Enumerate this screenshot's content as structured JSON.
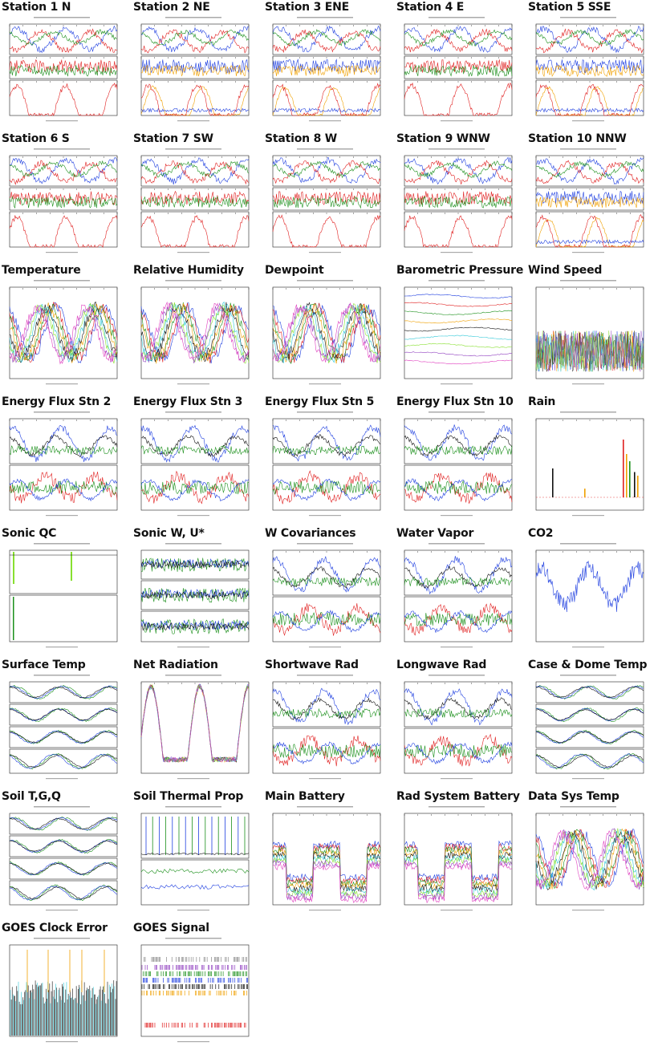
{
  "colors": {
    "blue": "#1f3fe0",
    "red": "#e01f1f",
    "green": "#1a8f1a",
    "orange": "#f0a000",
    "black": "#111111",
    "cyan": "#30c8d8",
    "lime": "#88e030",
    "purple": "#9040c0",
    "magenta": "#e040c0",
    "gray": "#888888"
  },
  "plots": [
    {
      "title": "Station 1 N",
      "kind": "station"
    },
    {
      "title": "Station 2 NE",
      "kind": "station_flux"
    },
    {
      "title": "Station 3 ENE",
      "kind": "station_flux"
    },
    {
      "title": "Station 4 E",
      "kind": "station"
    },
    {
      "title": "Station 5 SSE",
      "kind": "station_flux"
    },
    {
      "title": "Station 6 S",
      "kind": "station"
    },
    {
      "title": "Station 7 SW",
      "kind": "station"
    },
    {
      "title": "Station 8 W",
      "kind": "station"
    },
    {
      "title": "Station 9 WNW",
      "kind": "station"
    },
    {
      "title": "Station 10 NNW",
      "kind": "station_flux"
    },
    {
      "title": "Temperature",
      "kind": "multi"
    },
    {
      "title": "Relative Humidity",
      "kind": "multi"
    },
    {
      "title": "Dewpoint",
      "kind": "multi"
    },
    {
      "title": "Barometric Pressure",
      "kind": "flatlines"
    },
    {
      "title": "Wind Speed",
      "kind": "noisy"
    },
    {
      "title": "Energy Flux Stn 2",
      "kind": "flux2"
    },
    {
      "title": "Energy Flux Stn 3",
      "kind": "flux2"
    },
    {
      "title": "Energy Flux Stn 5",
      "kind": "flux2"
    },
    {
      "title": "Energy Flux Stn 10",
      "kind": "flux2"
    },
    {
      "title": "Rain",
      "kind": "rain"
    },
    {
      "title": "Sonic QC",
      "kind": "sonicqc"
    },
    {
      "title": "Sonic W, U*",
      "kind": "panels3"
    },
    {
      "title": "W Covariances",
      "kind": "panels2"
    },
    {
      "title": "Water Vapor",
      "kind": "panels2"
    },
    {
      "title": "CO2",
      "kind": "single"
    },
    {
      "title": "Surface Temp",
      "kind": "panels4"
    },
    {
      "title": "Net Radiation",
      "kind": "diurnal"
    },
    {
      "title": "Shortwave Rad",
      "kind": "panels2"
    },
    {
      "title": "Longwave Rad",
      "kind": "panels2"
    },
    {
      "title": "Case & Dome Temp",
      "kind": "panels4"
    },
    {
      "title": "Soil T,G,Q",
      "kind": "panels4"
    },
    {
      "title": "Soil Thermal Prop",
      "kind": "spikes"
    },
    {
      "title": "Main Battery",
      "kind": "battery"
    },
    {
      "title": "Rad System Battery",
      "kind": "battery"
    },
    {
      "title": "Data Sys Temp",
      "kind": "multi"
    },
    {
      "title": "GOES Clock Error",
      "kind": "bars"
    },
    {
      "title": "GOES Signal",
      "kind": "ticks"
    }
  ]
}
